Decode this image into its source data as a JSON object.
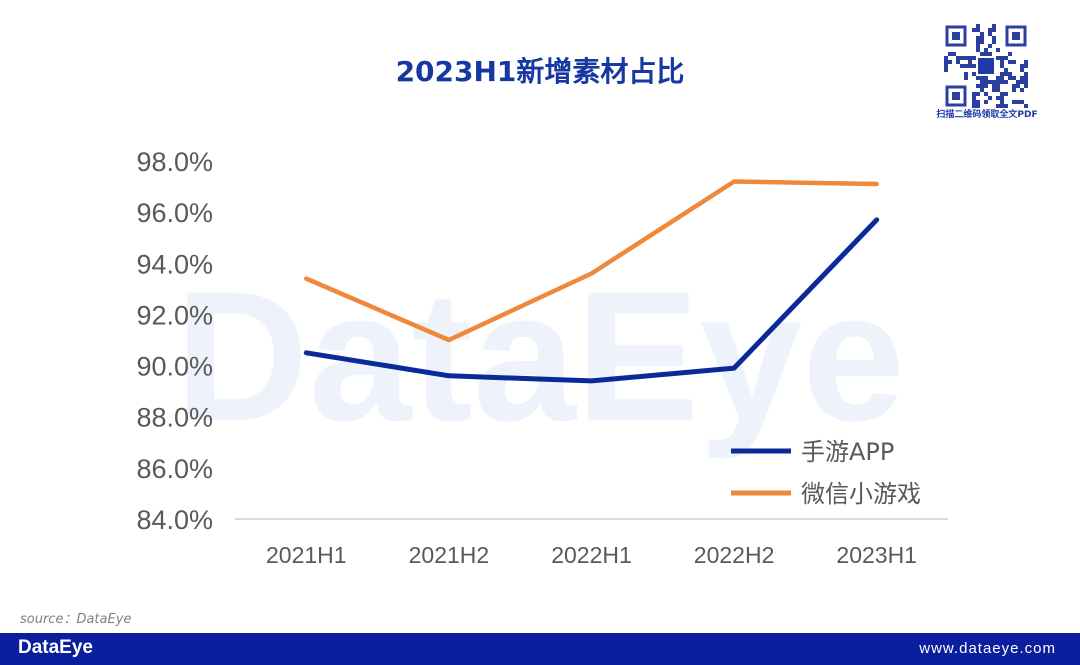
{
  "chart_data": {
    "type": "line",
    "title": "2023H1新增素材占比",
    "categories": [
      "2021H1",
      "2021H2",
      "2022H1",
      "2022H2",
      "2023H1"
    ],
    "y_ticks": [
      "98.0%",
      "96.0%",
      "94.0%",
      "92.0%",
      "90.0%",
      "88.0%",
      "86.0%",
      "84.0%"
    ],
    "ylim": [
      84,
      98
    ],
    "grid": false,
    "legend_position": "bottom-right",
    "series": [
      {
        "name": "手游APP",
        "color": "#0b2a9a",
        "values": [
          90.5,
          89.6,
          89.4,
          89.9,
          95.7
        ]
      },
      {
        "name": "微信小游戏",
        "color": "#f0883a",
        "values": [
          93.4,
          91.0,
          93.6,
          97.2,
          97.1
        ]
      }
    ]
  },
  "watermark": "DataEye",
  "qr_caption": "扫描二维码领取全文PDF",
  "source": "source：DataEye",
  "footer": {
    "logo": "DataEye",
    "url": "www.dataeye.com"
  }
}
